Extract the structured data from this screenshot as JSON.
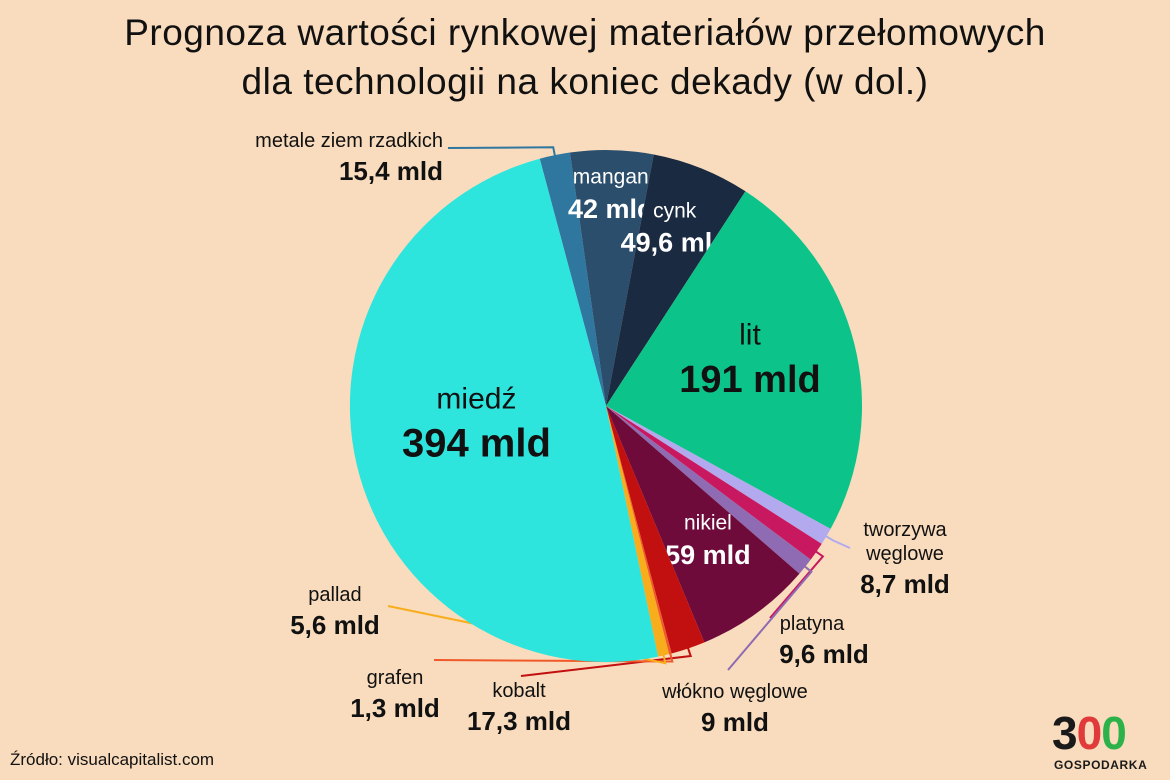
{
  "title_line1": "Prognoza wartości rynkowej materiałów przełomowych",
  "title_line2": "dla technologii na koniec dekady (w dol.)",
  "source": "Źródło: visualcapitalist.com",
  "logo": {
    "number": "300",
    "text": "GOSPODARKA",
    "accent": "#2db24a",
    "accent2": "#e03a3a"
  },
  "chart_data": {
    "type": "pie",
    "title": "Prognoza wartości rynkowej materiałów przełomowych dla technologii na koniec dekady (w dol.)",
    "unit": "mld USD",
    "slices": [
      {
        "name": "metale ziem rzadkich",
        "value": 15.4,
        "label": "15,4 mld",
        "color": "#2f779f"
      },
      {
        "name": "mangan",
        "value": 42,
        "label": "42 mld",
        "color": "#2a4e6c"
      },
      {
        "name": "cynk",
        "value": 49.6,
        "label": "49,6 mld",
        "color": "#1a2a40"
      },
      {
        "name": "lit",
        "value": 191,
        "label": "191 mld",
        "color": "#0cc489"
      },
      {
        "name": "tworzywa węglowe",
        "value": 8.7,
        "label": "8,7 mld",
        "color": "#b3a9ef"
      },
      {
        "name": "platyna",
        "value": 9.6,
        "label": "9,6 mld",
        "color": "#c8185f"
      },
      {
        "name": "włókno węglowe",
        "value": 9,
        "label": "9 mld",
        "color": "#8e6bb2"
      },
      {
        "name": "nikiel",
        "value": 59,
        "label": "59 mld",
        "color": "#6e0b3b"
      },
      {
        "name": "kobalt",
        "value": 17.3,
        "label": "17,3 mld",
        "color": "#c20f0f"
      },
      {
        "name": "grafen",
        "value": 1.3,
        "label": "1,3 mld",
        "color": "#f05a2a"
      },
      {
        "name": "pallad",
        "value": 5.6,
        "label": "5,6 mld",
        "color": "#f8ad1c"
      },
      {
        "name": "miedź",
        "value": 394,
        "label": "394 mld",
        "color": "#2ee5de"
      }
    ]
  }
}
